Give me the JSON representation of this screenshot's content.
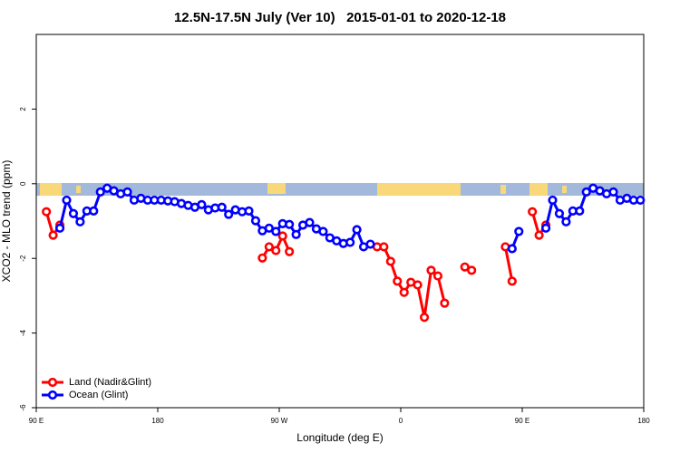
{
  "chart_data": {
    "type": "line",
    "title": "12.5N-17.5N July (Ver 10)   2015-01-01 to 2020-12-18",
    "x_label": "Longitude (deg E)",
    "y_label": "XCO2 - MLO trend (ppm)",
    "x": [
      97.5,
      102.5,
      107.5,
      112.5,
      117.5,
      122.5,
      127.5,
      132.5,
      137.5,
      142.5,
      147.5,
      152.5,
      157.5,
      162.5,
      167.5,
      172.5,
      177.5,
      182.5,
      187.5,
      192.5,
      197.5,
      202.5,
      207.5,
      212.5,
      217.5,
      222.5,
      227.5,
      232.5,
      237.5,
      242.5,
      247.5,
      252.5,
      257.5,
      262.5,
      267.5,
      272.5,
      277.5,
      282.5,
      287.5,
      292.5,
      297.5,
      302.5,
      307.5,
      312.5,
      317.5,
      322.5,
      327.5,
      332.5,
      337.5,
      342.5,
      347.5,
      352.5,
      357.5,
      362.5,
      367.5,
      372.5,
      377.5,
      382.5,
      387.5,
      392.5,
      397.5,
      402.5,
      407.5,
      412.5,
      417.5,
      422.5,
      427.5,
      432.5,
      437.5,
      442.5,
      447.5,
      452.5,
      457.5,
      462.5,
      467.5,
      472.5,
      477.5,
      482.5,
      487.5,
      492.5,
      497.5,
      502.5,
      507.5,
      512.5,
      517.5,
      522.5,
      527.5,
      532.5,
      537.5
    ],
    "series": [
      {
        "name": "Land (Nadir&Glint)",
        "color": "#ff0000",
        "values": [
          -0.75,
          -1.38,
          -1.11,
          null,
          null,
          null,
          null,
          null,
          null,
          null,
          null,
          null,
          null,
          null,
          null,
          null,
          null,
          null,
          null,
          null,
          null,
          null,
          null,
          null,
          null,
          null,
          null,
          null,
          null,
          null,
          null,
          null,
          -1.99,
          -1.69,
          -1.79,
          -1.4,
          -1.82,
          null,
          null,
          null,
          null,
          null,
          null,
          null,
          null,
          null,
          null,
          null,
          null,
          -1.69,
          -1.69,
          -2.08,
          -2.61,
          -2.91,
          -2.64,
          -2.71,
          -3.58,
          -2.32,
          -2.47,
          -3.2,
          null,
          null,
          -2.23,
          -2.32,
          null,
          null,
          null,
          null,
          -1.69,
          -2.61,
          null,
          null,
          -0.75,
          -1.38,
          -1.11,
          null,
          null,
          null,
          null,
          null,
          null,
          null,
          null,
          null,
          null,
          null,
          null,
          null,
          null
        ]
      },
      {
        "name": "Ocean (Glint)",
        "color": "#0000ff",
        "values": [
          null,
          null,
          -1.19,
          -0.44,
          -0.8,
          -1.02,
          -0.73,
          -0.73,
          -0.22,
          -0.12,
          -0.19,
          -0.27,
          -0.22,
          -0.44,
          -0.39,
          -0.44,
          -0.44,
          -0.44,
          -0.46,
          -0.48,
          -0.53,
          -0.58,
          -0.63,
          -0.56,
          -0.7,
          -0.65,
          -0.63,
          -0.82,
          -0.7,
          -0.75,
          -0.73,
          -0.99,
          -1.26,
          -1.19,
          -1.28,
          -1.07,
          -1.09,
          -1.36,
          -1.11,
          -1.04,
          -1.21,
          -1.28,
          -1.45,
          -1.53,
          -1.6,
          -1.57,
          -1.23,
          -1.69,
          -1.62,
          null,
          null,
          null,
          null,
          null,
          null,
          null,
          null,
          null,
          null,
          null,
          null,
          null,
          null,
          null,
          null,
          null,
          null,
          null,
          null,
          -1.74,
          -1.28,
          null,
          null,
          null,
          -1.19,
          -0.44,
          -0.8,
          -1.02,
          -0.73,
          -0.73,
          -0.22,
          -0.12,
          -0.19,
          -0.27,
          -0.22,
          -0.44,
          -0.39,
          -0.44,
          -0.44
        ]
      }
    ],
    "xlim": [
      90,
      540
    ],
    "xticks": [
      {
        "value": 90,
        "label": "90 E"
      },
      180,
      {
        "value": 270,
        "label": "90 W"
      },
      {
        "value": 360,
        "label": "0"
      },
      {
        "value": 450,
        "label": "90 E"
      },
      {
        "value": 540,
        "label": "180"
      }
    ],
    "ylim": [
      -6,
      4
    ],
    "yticks": [
      -6,
      -4,
      -2,
      0,
      2
    ],
    "legend": "bottom-left"
  }
}
